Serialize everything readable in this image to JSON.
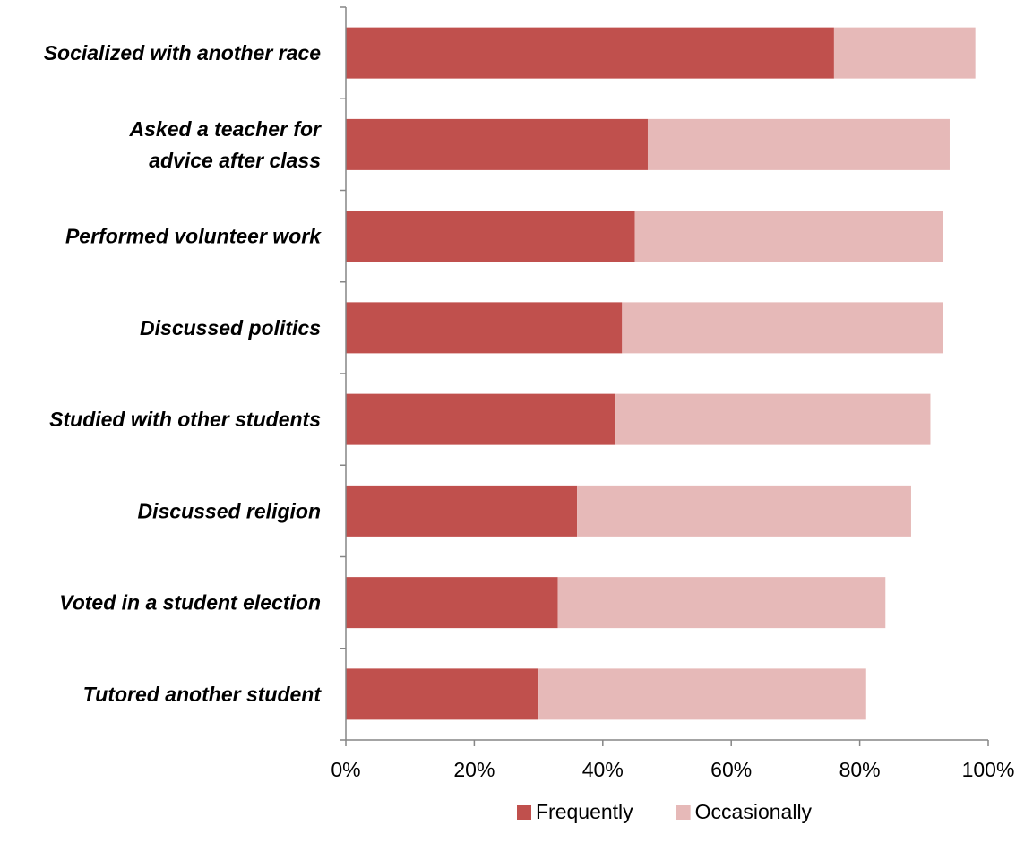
{
  "chart_data": {
    "type": "bar",
    "orientation": "horizontal",
    "stacked": true,
    "categories": [
      "Socialized with another race",
      "Asked a teacher for advice after class",
      "Performed volunteer work",
      "Discussed politics",
      "Studied with other students",
      "Discussed religion",
      "Voted in a student election",
      "Tutored another student"
    ],
    "category_lines": [
      [
        "Socialized with another race"
      ],
      [
        "Asked a teacher for",
        "advice after class"
      ],
      [
        "Performed volunteer work"
      ],
      [
        "Discussed politics"
      ],
      [
        "Studied with other students"
      ],
      [
        "Discussed religion"
      ],
      [
        "Voted in a student election"
      ],
      [
        "Tutored another student"
      ]
    ],
    "series": [
      {
        "name": "Frequently",
        "color": "#C0504D",
        "values": [
          76,
          47,
          45,
          43,
          42,
          36,
          33,
          30
        ]
      },
      {
        "name": "Occasionally",
        "color": "#E6B9B8",
        "values": [
          22,
          47,
          48,
          50,
          49,
          52,
          51,
          51
        ]
      }
    ],
    "xlim": [
      0,
      100
    ],
    "xticks": [
      0,
      20,
      40,
      60,
      80,
      100
    ],
    "xtick_labels": [
      "0%",
      "20%",
      "40%",
      "60%",
      "80%",
      "100%"
    ],
    "title": "",
    "xlabel": "",
    "ylabel": "",
    "grid": false,
    "legend_position": "bottom",
    "axis_color": "#868686"
  }
}
